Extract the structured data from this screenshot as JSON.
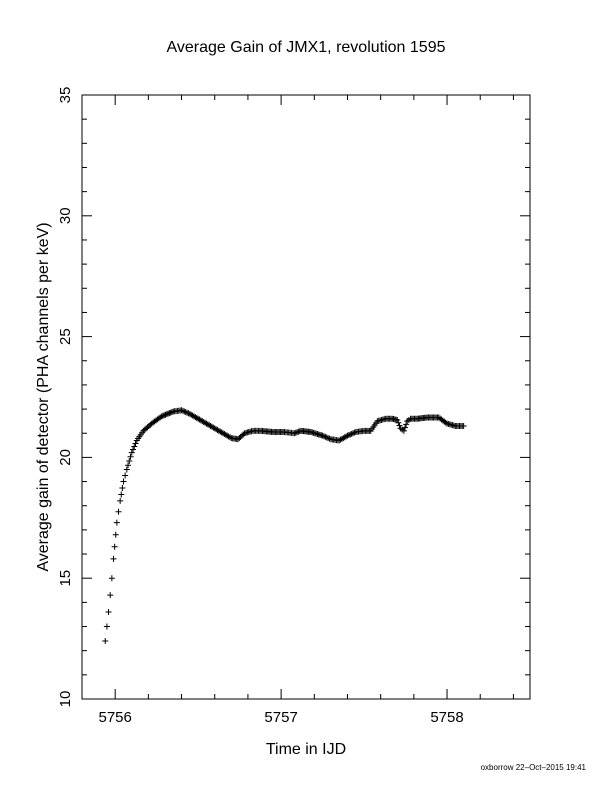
{
  "chart_data": {
    "type": "scatter",
    "title": "Average Gain of JMX1, revolution 1595",
    "xlabel": "Time in IJD",
    "ylabel": "Average gain of detector (PHA channels per keV)",
    "xlim": [
      5755.8,
      5758.5
    ],
    "ylim": [
      10,
      35
    ],
    "x_ticks": [
      5756,
      5757,
      5758
    ],
    "y_ticks": [
      10,
      15,
      20,
      25,
      30,
      35
    ],
    "x_tick_labels": [
      "5756",
      "5757",
      "5758"
    ],
    "y_tick_labels": [
      "10",
      "15",
      "20",
      "25",
      "30",
      "35"
    ],
    "grid": false,
    "marker": "plus",
    "series": [
      {
        "x": [
          5755.94,
          5755.95,
          5755.96,
          5755.97,
          5755.98,
          5755.99,
          5756.01,
          5756.03,
          5756.05,
          5756.07,
          5756.1,
          5756.13,
          5756.17,
          5756.22,
          5756.28,
          5756.35,
          5756.4,
          5756.45,
          5756.5,
          5756.55,
          5756.6,
          5756.65,
          5756.7,
          5756.74,
          5756.78,
          5756.83,
          5756.88,
          5756.95,
          5757.02,
          5757.08,
          5757.12,
          5757.18,
          5757.25,
          5757.3,
          5757.35,
          5757.4,
          5757.45,
          5757.5,
          5757.54,
          5757.58,
          5757.63,
          5757.67,
          5757.7,
          5757.72,
          5757.74,
          5757.76,
          5757.78,
          5757.82,
          5757.88,
          5757.95,
          5758.0,
          5758.05,
          5758.1
        ],
        "y": [
          12.4,
          13.0,
          13.6,
          14.3,
          15.0,
          15.8,
          17.3,
          18.2,
          19.0,
          19.5,
          20.2,
          20.7,
          21.1,
          21.4,
          21.7,
          21.9,
          21.95,
          21.8,
          21.6,
          21.4,
          21.2,
          21.0,
          20.8,
          20.75,
          21.0,
          21.1,
          21.1,
          21.05,
          21.05,
          21.0,
          21.1,
          21.05,
          20.9,
          20.75,
          20.7,
          20.9,
          21.05,
          21.1,
          21.1,
          21.5,
          21.6,
          21.6,
          21.55,
          21.2,
          21.1,
          21.5,
          21.6,
          21.6,
          21.65,
          21.65,
          21.4,
          21.3,
          21.3
        ]
      }
    ]
  },
  "footer": {
    "credit": "oxborrow 22–Oct–2015 19:41"
  }
}
